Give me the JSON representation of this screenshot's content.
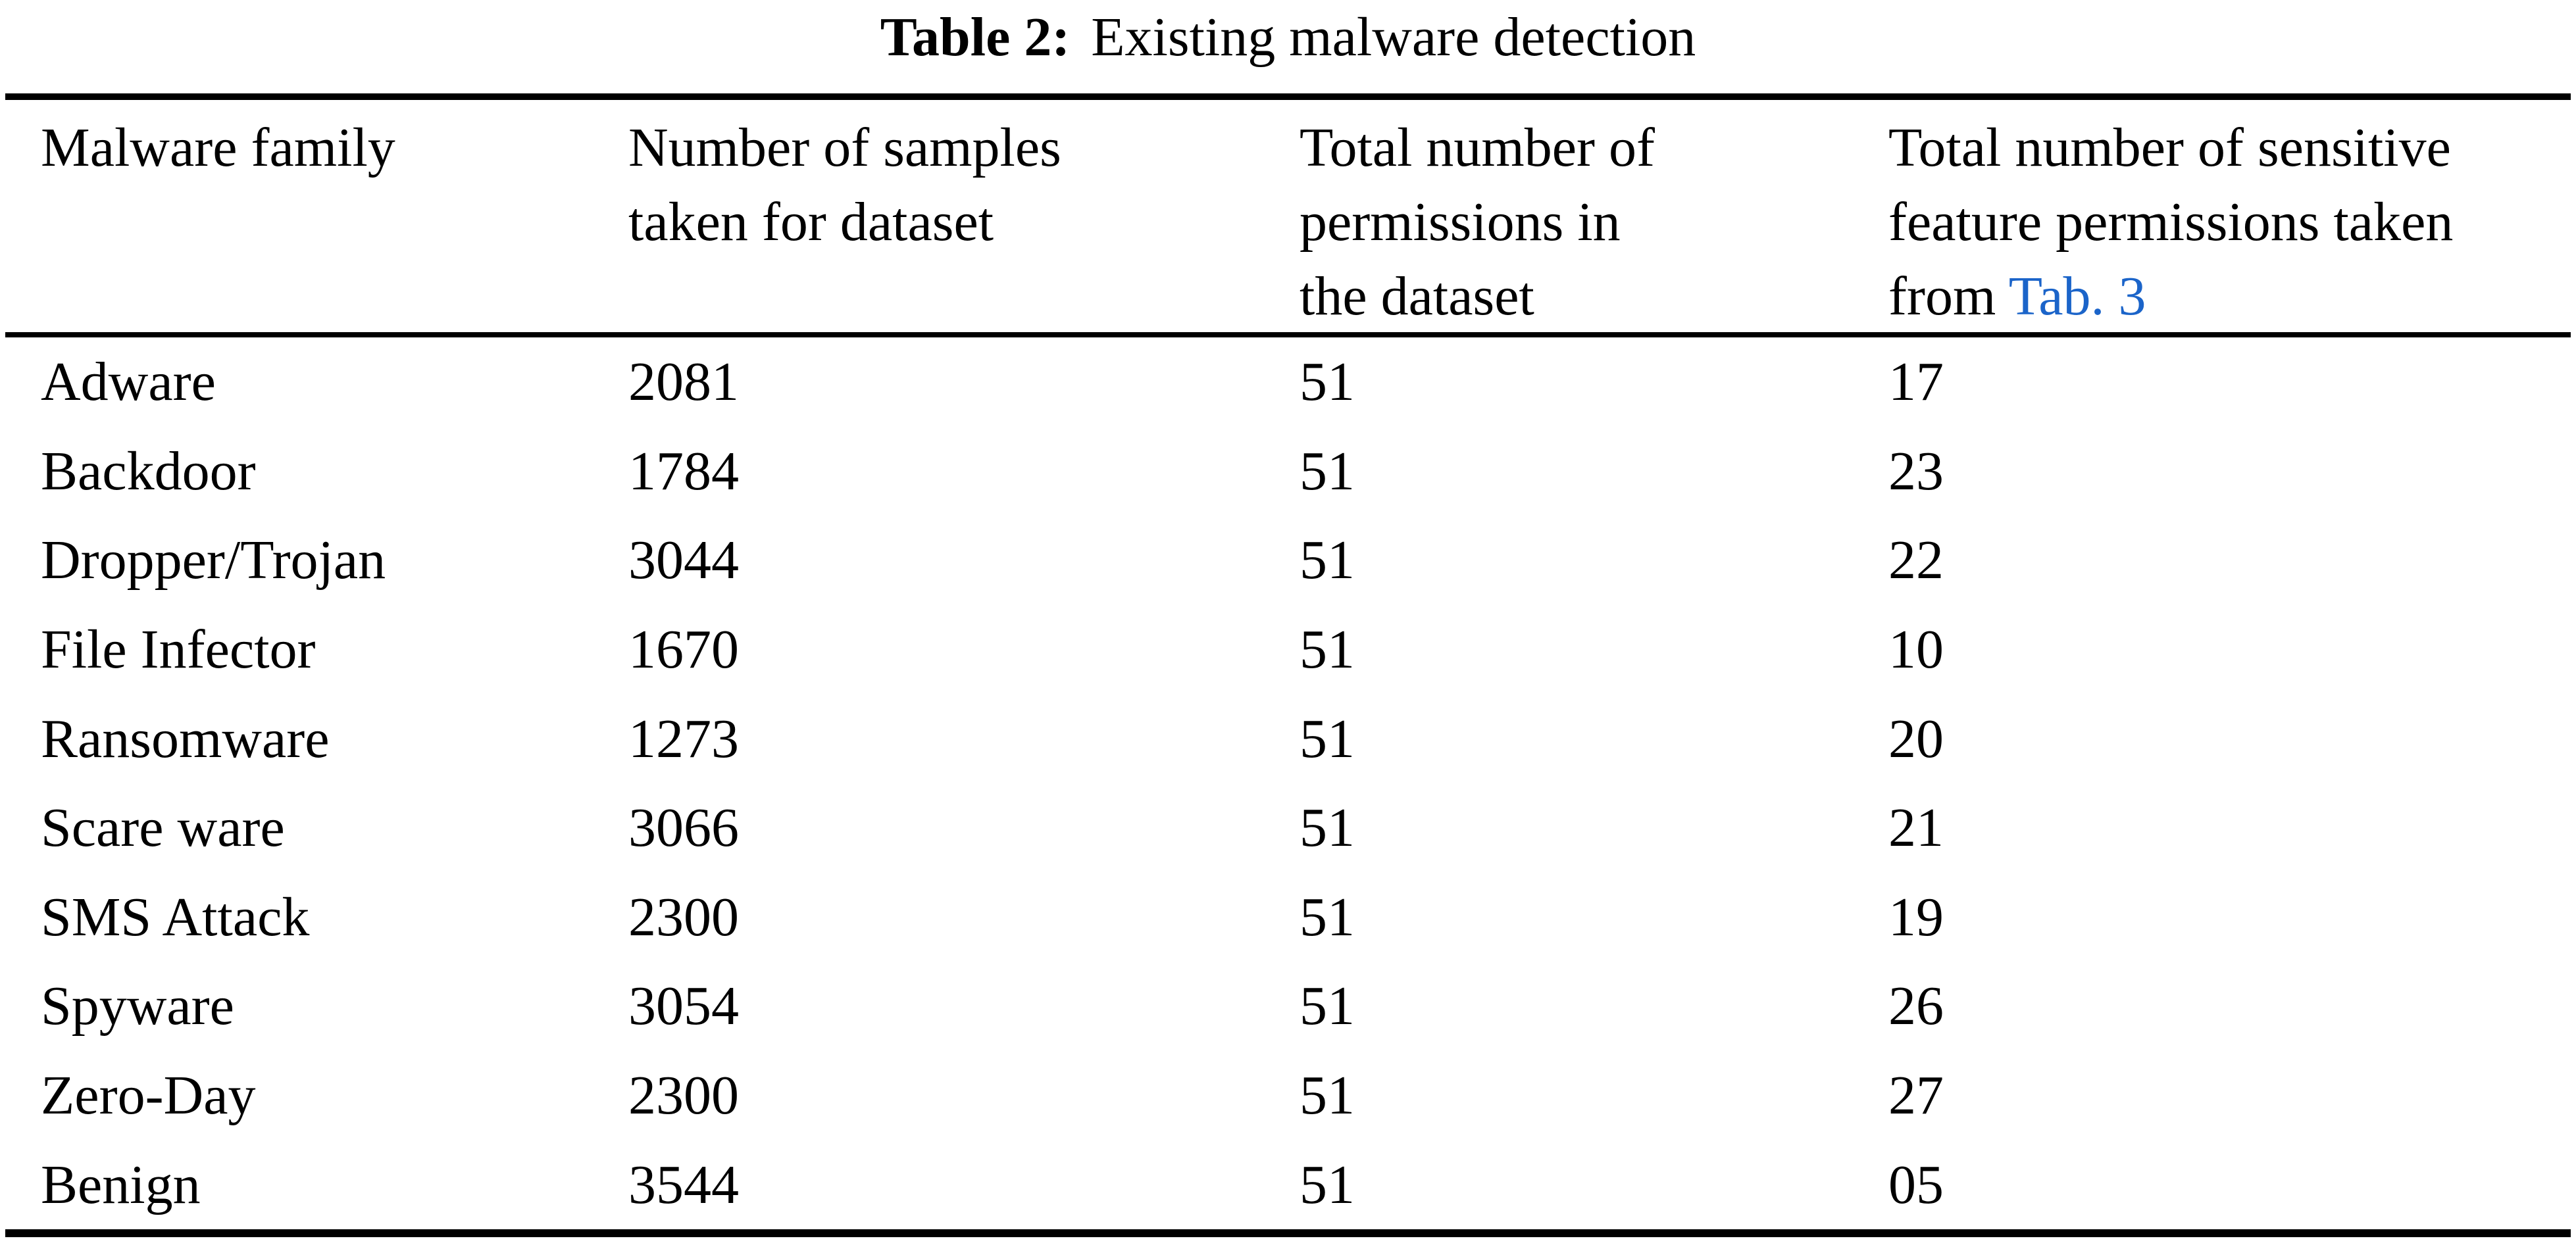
{
  "caption": {
    "label": "Table 2:",
    "text": "Existing malware detection"
  },
  "table": {
    "header": {
      "columns": [
        {
          "lines": [
            "Malware family"
          ]
        },
        {
          "lines": [
            "Number of samples",
            "taken for dataset"
          ]
        },
        {
          "lines": [
            "Total number of",
            "permissions in",
            "the dataset"
          ]
        },
        {
          "lines": [
            "Total number of sensitive",
            "feature permissions taken",
            "from "
          ],
          "link_text": "Tab. 3"
        }
      ]
    },
    "rows": [
      {
        "family": "Adware",
        "samples": "2081",
        "permissions": "51",
        "sensitive": "17"
      },
      {
        "family": "Backdoor",
        "samples": "1784",
        "permissions": "51",
        "sensitive": "23"
      },
      {
        "family": "Dropper/Trojan",
        "samples": "3044",
        "permissions": "51",
        "sensitive": "22"
      },
      {
        "family": "File Infector",
        "samples": "1670",
        "permissions": "51",
        "sensitive": "10"
      },
      {
        "family": "Ransomware",
        "samples": "1273",
        "permissions": "51",
        "sensitive": "20"
      },
      {
        "family": "Scare ware",
        "samples": "3066",
        "permissions": "51",
        "sensitive": "21"
      },
      {
        "family": "SMS Attack",
        "samples": "2300",
        "permissions": "51",
        "sensitive": "19"
      },
      {
        "family": "Spyware",
        "samples": "3054",
        "permissions": "51",
        "sensitive": "26"
      },
      {
        "family": "Zero-Day",
        "samples": "2300",
        "permissions": "51",
        "sensitive": "27"
      },
      {
        "family": "Benign",
        "samples": "3544",
        "permissions": "51",
        "sensitive": "05"
      }
    ]
  },
  "colors": {
    "link_blue": "#1b64c9",
    "text": "#000000",
    "background": "#ffffff"
  }
}
